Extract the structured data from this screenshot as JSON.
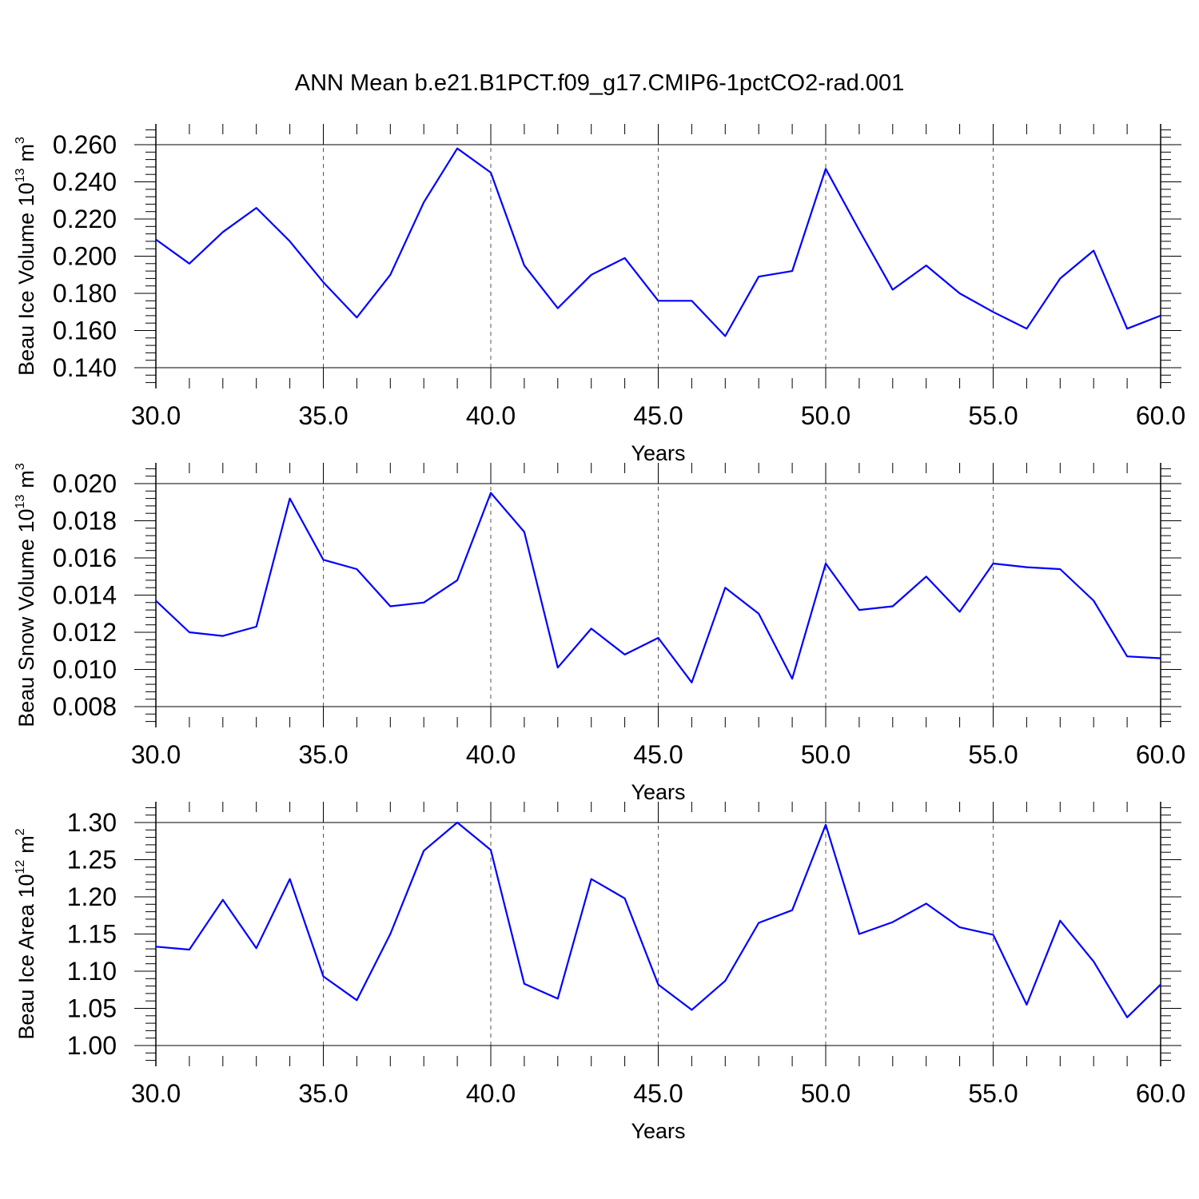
{
  "page_title": "ANN Mean b.e21.B1PCT.f09_g17.CMIP6-1pctCO2-rad.001",
  "colors": {
    "line": "#0000ff",
    "axes": "#000000",
    "grid": "#555555"
  },
  "chart_data": [
    {
      "type": "line",
      "title": "",
      "xlabel": "Years",
      "ylabel": {
        "main": "Beau Ice Volume 10",
        "exponent": "13",
        "unit": "m",
        "unit_exponent": "3"
      },
      "xlim": [
        30,
        60
      ],
      "ylim": [
        0.14,
        0.26
      ],
      "xticks": [
        "30.0",
        "35.0",
        "40.0",
        "45.0",
        "50.0",
        "55.0",
        "60.0"
      ],
      "yticks": [
        "0.140",
        "0.160",
        "0.180",
        "0.200",
        "0.220",
        "0.240",
        "0.260"
      ],
      "grid": "vertical dashed at major x ticks",
      "series": [
        {
          "x": [
            30,
            31,
            32,
            33,
            34,
            35,
            36,
            37,
            38,
            39,
            40,
            41,
            42,
            43,
            44,
            45,
            46,
            47,
            48,
            49,
            50,
            51,
            52,
            53,
            54,
            55,
            56,
            57,
            58,
            59,
            60
          ],
          "values": [
            0.209,
            0.196,
            0.213,
            0.226,
            0.208,
            0.186,
            0.167,
            0.19,
            0.229,
            0.258,
            0.245,
            0.195,
            0.172,
            0.19,
            0.199,
            0.176,
            0.176,
            0.157,
            0.189,
            0.192,
            0.247,
            0.214,
            0.182,
            0.195,
            0.18,
            0.17,
            0.161,
            0.188,
            0.203,
            0.161,
            0.168
          ]
        }
      ]
    },
    {
      "type": "line",
      "title": "",
      "xlabel": "Years",
      "ylabel": {
        "main": "Beau Snow Volume 10",
        "exponent": "13",
        "unit": "m",
        "unit_exponent": "3"
      },
      "xlim": [
        30,
        60
      ],
      "ylim": [
        0.008,
        0.02
      ],
      "xticks": [
        "30.0",
        "35.0",
        "40.0",
        "45.0",
        "50.0",
        "55.0",
        "60.0"
      ],
      "yticks": [
        "0.008",
        "0.010",
        "0.012",
        "0.014",
        "0.016",
        "0.018",
        "0.020"
      ],
      "grid": "vertical dashed at major x ticks",
      "series": [
        {
          "x": [
            30,
            31,
            32,
            33,
            34,
            35,
            36,
            37,
            38,
            39,
            40,
            41,
            42,
            43,
            44,
            45,
            46,
            47,
            48,
            49,
            50,
            51,
            52,
            53,
            54,
            55,
            56,
            57,
            58,
            59,
            60
          ],
          "values": [
            0.0137,
            0.012,
            0.0118,
            0.0123,
            0.0192,
            0.0159,
            0.0154,
            0.0134,
            0.0136,
            0.0148,
            0.0195,
            0.0174,
            0.0101,
            0.0122,
            0.0108,
            0.0117,
            0.0093,
            0.0144,
            0.013,
            0.0095,
            0.0157,
            0.0132,
            0.0134,
            0.015,
            0.0131,
            0.0157,
            0.0155,
            0.0154,
            0.0137,
            0.0107,
            0.0106
          ]
        }
      ]
    },
    {
      "type": "line",
      "title": "",
      "xlabel": "Years",
      "ylabel": {
        "main": "Beau Ice Area 10",
        "exponent": "12",
        "unit": "m",
        "unit_exponent": "2"
      },
      "xlim": [
        30,
        60
      ],
      "ylim": [
        1.0,
        1.3
      ],
      "xticks": [
        "30.0",
        "35.0",
        "40.0",
        "45.0",
        "50.0",
        "55.0",
        "60.0"
      ],
      "yticks": [
        "1.00",
        "1.05",
        "1.10",
        "1.15",
        "1.20",
        "1.25",
        "1.30"
      ],
      "grid": "vertical dashed at major x ticks",
      "series": [
        {
          "x": [
            30,
            31,
            32,
            33,
            34,
            35,
            36,
            37,
            38,
            39,
            40,
            41,
            42,
            43,
            44,
            45,
            46,
            47,
            48,
            49,
            50,
            51,
            52,
            53,
            54,
            55,
            56,
            57,
            58,
            59,
            60
          ],
          "values": [
            1.133,
            1.129,
            1.196,
            1.131,
            1.224,
            1.093,
            1.061,
            1.15,
            1.262,
            1.3,
            1.263,
            1.083,
            1.063,
            1.224,
            1.198,
            1.082,
            1.048,
            1.087,
            1.165,
            1.182,
            1.297,
            1.15,
            1.166,
            1.191,
            1.159,
            1.149,
            1.055,
            1.168,
            1.113,
            1.038,
            1.082
          ]
        }
      ]
    }
  ]
}
